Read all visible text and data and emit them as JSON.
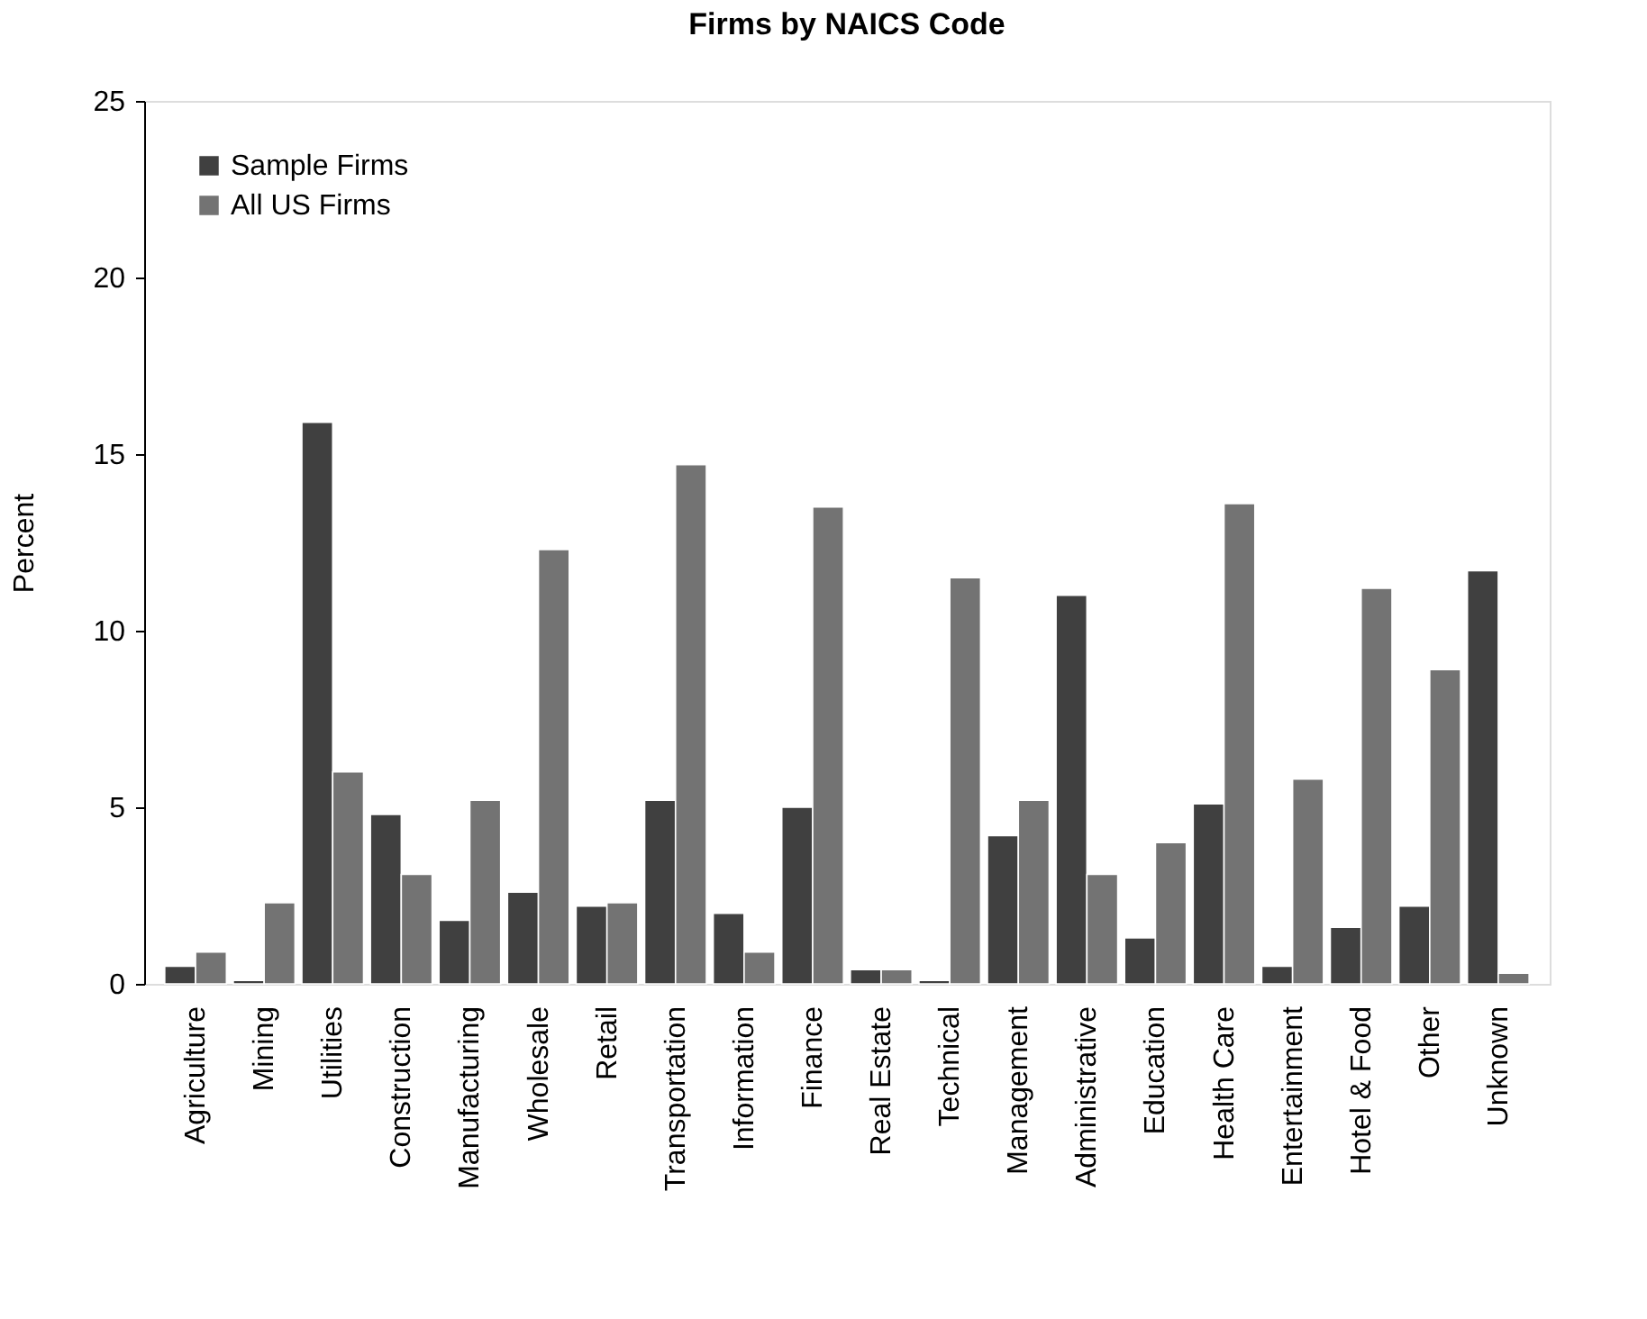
{
  "chart_data": {
    "type": "bar",
    "title": "Firms by NAICS Code",
    "ylabel": "Percent",
    "categories": [
      "Agriculture",
      "Mining",
      "Utilities",
      "Construction",
      "Manufacturing",
      "Wholesale",
      "Retail",
      "Transportation",
      "Information",
      "Finance",
      "Real Estate",
      "Technical",
      "Management",
      "Administrative",
      "Education",
      "Health Care",
      "Entertainment",
      "Hotel & Food",
      "Other",
      "Unknown"
    ],
    "series": [
      {
        "name": "Sample Firms",
        "color": "#404040",
        "values": [
          0.5,
          0.1,
          15.9,
          4.8,
          1.8,
          2.6,
          2.2,
          5.2,
          2.0,
          5.0,
          0.4,
          0.1,
          4.2,
          11.0,
          1.3,
          5.1,
          0.5,
          1.6,
          2.2,
          11.7
        ]
      },
      {
        "name": "All US Firms",
        "color": "#737373",
        "values": [
          0.9,
          2.3,
          6.0,
          3.1,
          5.2,
          12.3,
          2.3,
          14.7,
          0.9,
          13.5,
          0.4,
          11.5,
          5.2,
          3.1,
          4.0,
          13.6,
          5.8,
          11.2,
          8.9,
          0.3
        ]
      }
    ],
    "ylim": [
      0,
      25
    ],
    "yticks": [
      0,
      5,
      10,
      15,
      20,
      25
    ],
    "grid": false,
    "legend": "top left"
  }
}
